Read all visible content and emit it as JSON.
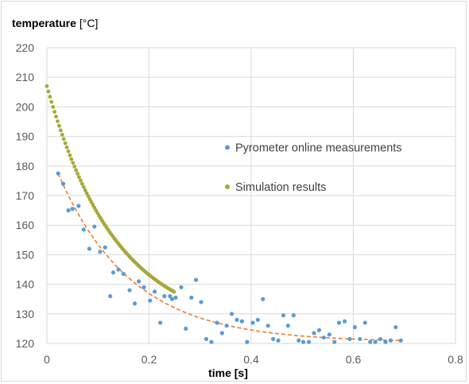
{
  "chart_data": {
    "type": "scatter",
    "ylabel_main": "temperature",
    "ylabel_unit": "[°C]",
    "xlabel": "time [s]",
    "xlim": [
      0,
      0.8
    ],
    "ylim": [
      120,
      220
    ],
    "xticks": [
      "0",
      "0.2",
      "0.4",
      "0.6",
      "0.8"
    ],
    "yticks": [
      "120",
      "130",
      "140",
      "150",
      "160",
      "170",
      "180",
      "190",
      "200",
      "210",
      "220"
    ],
    "grid": true,
    "legend_position": "right",
    "series": [
      {
        "name": "Pyrometer online measurements",
        "color": "#5b9bd5",
        "marker": "circle",
        "points": [
          [
            0.022,
            177.5
          ],
          [
            0.032,
            174
          ],
          [
            0.042,
            165
          ],
          [
            0.05,
            165.5
          ],
          [
            0.062,
            166.5
          ],
          [
            0.072,
            158.5
          ],
          [
            0.083,
            152
          ],
          [
            0.093,
            159.5
          ],
          [
            0.104,
            151
          ],
          [
            0.114,
            152.5
          ],
          [
            0.124,
            136
          ],
          [
            0.13,
            144
          ],
          [
            0.14,
            145
          ],
          [
            0.15,
            143.5
          ],
          [
            0.162,
            138
          ],
          [
            0.172,
            133.5
          ],
          [
            0.18,
            141
          ],
          [
            0.19,
            139
          ],
          [
            0.202,
            134.5
          ],
          [
            0.211,
            137.5
          ],
          [
            0.222,
            127
          ],
          [
            0.23,
            136
          ],
          [
            0.241,
            136
          ],
          [
            0.245,
            135
          ],
          [
            0.252,
            135.5
          ],
          [
            0.263,
            139
          ],
          [
            0.272,
            125
          ],
          [
            0.283,
            135.5
          ],
          [
            0.292,
            141.5
          ],
          [
            0.302,
            134
          ],
          [
            0.312,
            121.5
          ],
          [
            0.322,
            120.5
          ],
          [
            0.333,
            127
          ],
          [
            0.343,
            123.5
          ],
          [
            0.352,
            126
          ],
          [
            0.362,
            130
          ],
          [
            0.372,
            128
          ],
          [
            0.382,
            127.5
          ],
          [
            0.392,
            120.5
          ],
          [
            0.403,
            127
          ],
          [
            0.413,
            128
          ],
          [
            0.423,
            135
          ],
          [
            0.433,
            126
          ],
          [
            0.443,
            121.5
          ],
          [
            0.453,
            121
          ],
          [
            0.463,
            129.5
          ],
          [
            0.472,
            126
          ],
          [
            0.483,
            129.5
          ],
          [
            0.493,
            121
          ],
          [
            0.502,
            120.5
          ],
          [
            0.513,
            120.5
          ],
          [
            0.523,
            123.5
          ],
          [
            0.533,
            124.5
          ],
          [
            0.542,
            122
          ],
          [
            0.553,
            123
          ],
          [
            0.563,
            120.5
          ],
          [
            0.572,
            127
          ],
          [
            0.583,
            127.5
          ],
          [
            0.593,
            121.5
          ],
          [
            0.603,
            125.5
          ],
          [
            0.613,
            121.5
          ],
          [
            0.623,
            127
          ],
          [
            0.633,
            120.5
          ],
          [
            0.643,
            120.5
          ],
          [
            0.653,
            121.5
          ],
          [
            0.663,
            120.5
          ],
          [
            0.673,
            121
          ],
          [
            0.683,
            125.5
          ],
          [
            0.693,
            121
          ]
        ]
      },
      {
        "name": "Simulation results",
        "color": "#a8a83a",
        "marker": "circle",
        "model": {
          "start": 207,
          "asymptote": 124.3,
          "decay": 7.38
        },
        "x_range": [
          0,
          0.25
        ],
        "x_step": 0.003
      }
    ],
    "trendline": {
      "color": "#ed7d31",
      "style": "dashed",
      "model": {
        "start": 177.5,
        "offset_x": 0.022,
        "asymptote": 120.5,
        "decay": 7.0
      },
      "x_range": [
        0.022,
        0.69
      ]
    }
  }
}
